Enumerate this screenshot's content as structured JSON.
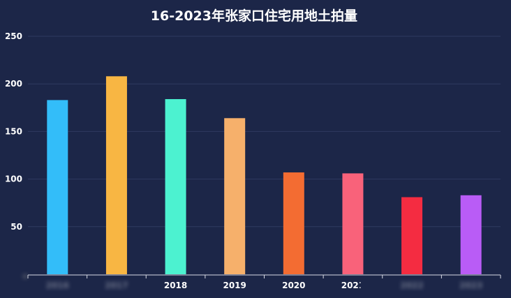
{
  "chart_data": {
    "type": "bar",
    "title": "2016-2023年张家口住宅用地土拍量",
    "xlabel": "",
    "ylabel": "",
    "categories": [
      "2016",
      "2017",
      "2018",
      "2019",
      "2020",
      "2021",
      "2022",
      "2023"
    ],
    "values": [
      183,
      208,
      184,
      164,
      107,
      106,
      81,
      83
    ],
    "colors": [
      "#33bdf9",
      "#f8b643",
      "#4cf2d0",
      "#f6b06b",
      "#f36c32",
      "#f9627a",
      "#f42c41",
      "#b95cf6"
    ],
    "ylim": [
      0,
      250
    ],
    "yticks": [
      "50",
      "100",
      "150",
      "200",
      "250"
    ],
    "grid": true,
    "legend": "none"
  }
}
